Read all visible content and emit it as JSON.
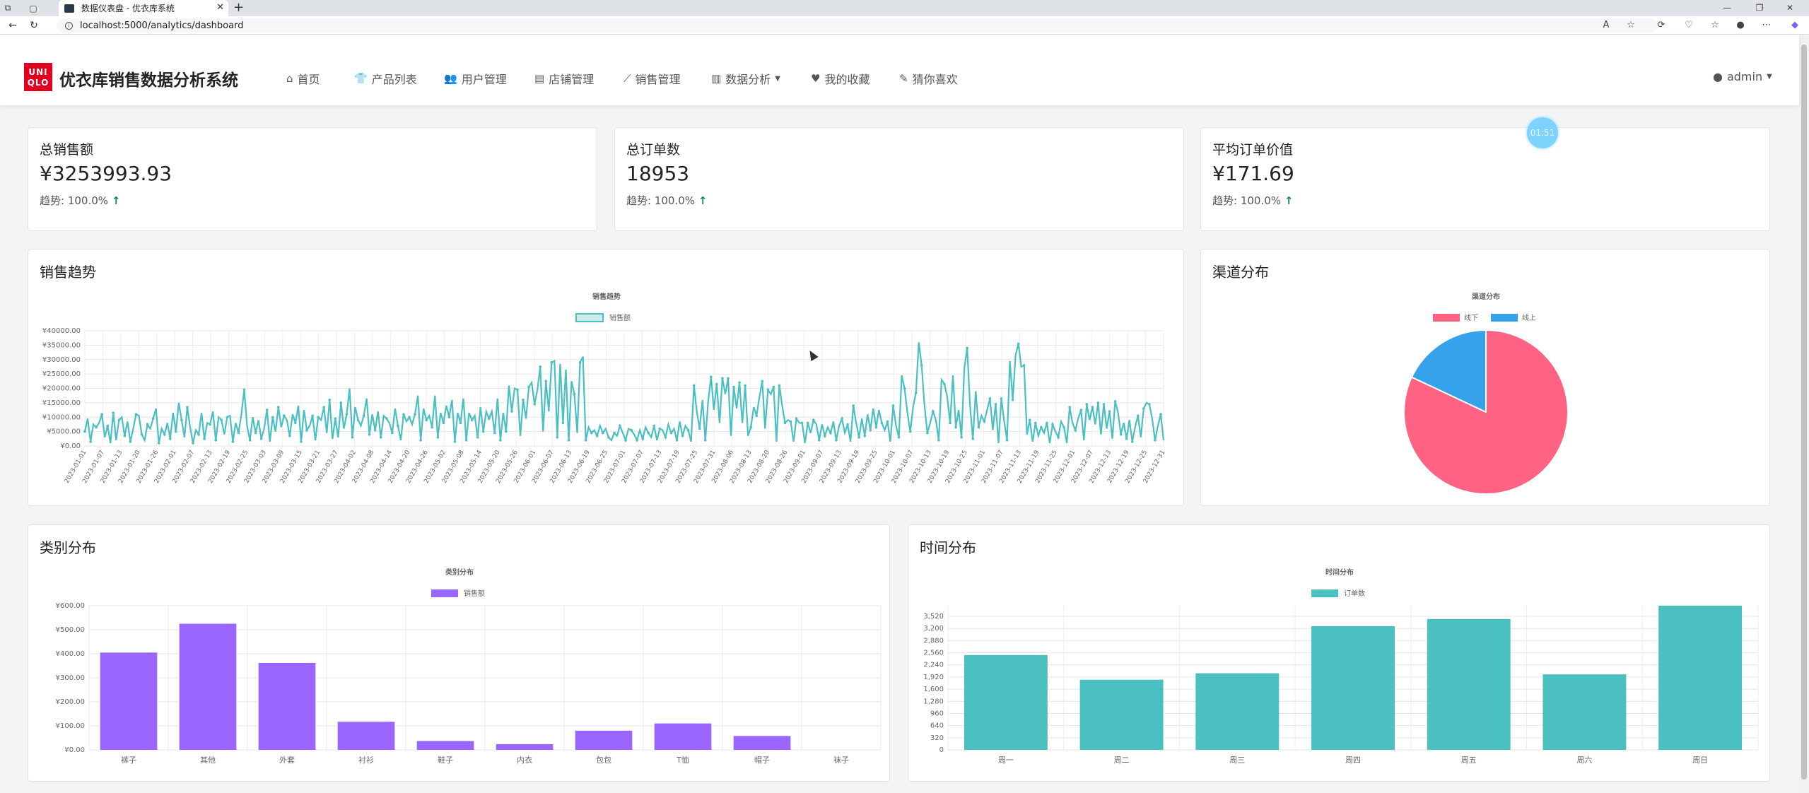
{
  "browser": {
    "tab_title": "数据仪表盘 - 优衣库系统",
    "url": "localhost:5000/analytics/dashboard",
    "new_tab_label": "+",
    "close_label": "✕"
  },
  "navbar": {
    "logo_top": "UNI",
    "logo_bottom": "QLO",
    "brand": "优衣库销售数据分析系统",
    "items": [
      {
        "icon": "home-icon",
        "label": "首页"
      },
      {
        "icon": "tshirt-icon",
        "label": "产品列表"
      },
      {
        "icon": "users-icon",
        "label": "用户管理"
      },
      {
        "icon": "store-icon",
        "label": "店铺管理"
      },
      {
        "icon": "line-chart-icon",
        "label": "销售管理"
      },
      {
        "icon": "bar-chart-icon",
        "label": "数据分析"
      },
      {
        "icon": "heart-icon",
        "label": "我的收藏"
      },
      {
        "icon": "pencil-icon",
        "label": "猜你喜欢"
      }
    ],
    "user": "admin"
  },
  "timer_badge": "01:51",
  "stats": [
    {
      "title": "总销售额",
      "value": "¥3253993.93",
      "trend_label": "趋势: 100.0%",
      "trend_arrow": "↑"
    },
    {
      "title": "总订单数",
      "value": "18953",
      "trend_label": "趋势: 100.0%",
      "trend_arrow": "↑"
    },
    {
      "title": "平均订单价值",
      "value": "¥171.69",
      "trend_label": "趋势: 100.0%",
      "trend_arrow": "↑"
    }
  ],
  "cards": {
    "sales_trend_title": "销售趋势",
    "channel_title": "渠道分布",
    "category_title": "类别分布",
    "time_title": "时间分布"
  },
  "colors": {
    "teal": "#4bc0c0",
    "pink": "#ff6384",
    "blue": "#36a2eb",
    "purple": "#9966ff",
    "stat_arrow": "#198754"
  },
  "chart_data": [
    {
      "type": "line",
      "title": "销售趋势",
      "legend": [
        "销售额"
      ],
      "ylim": [
        0,
        40000
      ],
      "y_ticks": [
        "¥0.00",
        "¥5000.00",
        "¥10000.00",
        "¥15000.00",
        "¥20000.00",
        "¥25000.00",
        "¥30000.00",
        "¥35000.00",
        "¥40000.00"
      ],
      "x_tick_labels": [
        "2023-01-01",
        "2023-01-07",
        "2023-01-13",
        "2023-01-20",
        "2023-01-26",
        "2023-02-01",
        "2023-02-07",
        "2023-02-13",
        "2023-02-19",
        "2023-02-25",
        "2023-03-03",
        "2023-03-09",
        "2023-03-15",
        "2023-03-21",
        "2023-03-27",
        "2023-04-02",
        "2023-04-08",
        "2023-04-14",
        "2023-04-20",
        "2023-04-26",
        "2023-05-02",
        "2023-05-08",
        "2023-05-14",
        "2023-05-20",
        "2023-05-26",
        "2023-06-01",
        "2023-06-07",
        "2023-06-13",
        "2023-06-19",
        "2023-06-25",
        "2023-07-01",
        "2023-07-07",
        "2023-07-13",
        "2023-07-19",
        "2023-07-25",
        "2023-07-31",
        "2023-08-06",
        "2023-08-13",
        "2023-08-20",
        "2023-08-26",
        "2023-09-01",
        "2023-09-07",
        "2023-09-13",
        "2023-09-19",
        "2023-09-25",
        "2023-10-01",
        "2023-10-07",
        "2023-10-13",
        "2023-10-19",
        "2023-10-25",
        "2023-11-01",
        "2023-11-07",
        "2023-11-13",
        "2023-11-19",
        "2023-11-25",
        "2023-12-01",
        "2023-12-07",
        "2023-12-13",
        "2023-12-19",
        "2023-12-25",
        "2023-12-31"
      ],
      "values": [
        5000,
        9500,
        1500,
        7500,
        6500,
        8000,
        11000,
        3000,
        7000,
        1000,
        11500,
        2000,
        9000,
        10000,
        3500,
        8500,
        1500,
        6000,
        11000,
        10500,
        4000,
        2000,
        7500,
        6000,
        9500,
        13000,
        1000,
        6000,
        4000,
        8000,
        2500,
        11500,
        5000,
        15000,
        9000,
        3000,
        13500,
        6500,
        1000,
        5500,
        4000,
        11500,
        2500,
        8000,
        7500,
        12000,
        2000,
        10000,
        9000,
        4000,
        10000,
        10500,
        1500,
        8000,
        4500,
        11000,
        19500,
        7000,
        2000,
        10000,
        4500,
        9000,
        2500,
        6000,
        12500,
        1500,
        10000,
        5000,
        13500,
        6500,
        10500,
        9000,
        3500,
        11000,
        8000,
        14000,
        1500,
        12500,
        5500,
        7000,
        10500,
        2000,
        10000,
        9000,
        13500,
        4500,
        16000,
        2500,
        9500,
        3000,
        15000,
        6000,
        11000,
        20000,
        3000,
        13500,
        9000,
        7000,
        10500,
        16500,
        4000,
        11000,
        5500,
        12000,
        3000,
        10500,
        9500,
        8000,
        4500,
        13000,
        7000,
        2000,
        11000,
        8500,
        10000,
        7500,
        11000,
        17500,
        2000,
        13000,
        9000,
        10500,
        6500,
        17500,
        3000,
        11500,
        8000,
        14000,
        10000,
        16000,
        1500,
        11500,
        8000,
        16500,
        2000,
        11500,
        9000,
        10500,
        3000,
        13500,
        5000,
        12000,
        9500,
        12000,
        4500,
        16500,
        2000,
        11500,
        5000,
        21000,
        12000,
        20000,
        19500,
        3500,
        16000,
        9500,
        20500,
        22000,
        14500,
        19500,
        27500,
        5000,
        22500,
        12000,
        29000,
        29500,
        3000,
        28500,
        8000,
        26500,
        2000,
        22500,
        18000,
        4500,
        29000,
        31000,
        2000,
        6500,
        4500,
        5500,
        3500,
        7000,
        4500,
        6000,
        3000,
        2000,
        4500,
        3500,
        7000,
        4500,
        2000,
        6000,
        5500,
        4000,
        2000,
        5500,
        2500,
        6500,
        4500,
        3000,
        7000,
        2000,
        6000,
        5500,
        3000,
        7500,
        4500,
        6000,
        2000,
        8500,
        3500,
        7000,
        5500,
        1500,
        21000,
        12000,
        6000,
        16000,
        2000,
        15500,
        24000,
        12500,
        21500,
        8000,
        23500,
        18000,
        23500,
        3500,
        20500,
        13000,
        22000,
        8000,
        21000,
        3500,
        6500,
        13500,
        10500,
        17000,
        22500,
        6000,
        19500,
        18000,
        20500,
        1500,
        21000,
        14000,
        8000,
        9000,
        8500,
        1500,
        9500,
        8000,
        8000,
        1000,
        8000,
        4500,
        9000,
        7500,
        2000,
        7500,
        3500,
        6500,
        4500,
        8500,
        2000,
        7000,
        9500,
        4500,
        7500,
        1500,
        14000,
        8000,
        3000,
        9500,
        3500,
        11000,
        5500,
        13000,
        6500,
        12500,
        8000,
        5500,
        8500,
        1500,
        14000,
        7000,
        3000,
        24500,
        20000,
        11500,
        5000,
        13500,
        18500,
        36000,
        28000,
        14000,
        4500,
        8000,
        12000,
        9000,
        2000,
        23000,
        21500,
        17000,
        8000,
        24500,
        6500,
        12500,
        3000,
        27000,
        34000,
        14000,
        2500,
        19000,
        6500,
        10500,
        8500,
        12500,
        16500,
        5500,
        14500,
        1000,
        16500,
        8500,
        2000,
        29500,
        16000,
        31500,
        35500,
        27500,
        28000,
        4000,
        9000,
        1500,
        8000,
        3500,
        6500,
        4500,
        8000,
        1000,
        7500,
        5000,
        3000,
        8500,
        6500,
        1000,
        13500,
        8000,
        5500,
        9500,
        12500,
        2000,
        14500,
        9000,
        13500,
        7500,
        15000,
        4000,
        14500,
        6000,
        12000,
        2500,
        15500,
        11500,
        4000,
        8000,
        2500,
        9000,
        1500,
        6500,
        10500,
        3000,
        13000,
        15000,
        14500,
        9500,
        2000,
        7000,
        11000,
        2000
      ],
      "note_values_source": "estimated from plotted line"
    },
    {
      "type": "pie",
      "title": "渠道分布",
      "categories": [
        "线下",
        "线上"
      ],
      "values": [
        82,
        18
      ],
      "colors": [
        "#ff6384",
        "#36a2eb"
      ]
    },
    {
      "type": "bar",
      "title": "类别分布",
      "legend": [
        "销售额"
      ],
      "categories": [
        "裤子",
        "其他",
        "外套",
        "衬衫",
        "鞋子",
        "内衣",
        "包包",
        "T恤",
        "帽子",
        "袜子"
      ],
      "values": [
        405,
        525,
        362,
        117,
        37,
        24,
        80,
        110,
        58,
        0
      ],
      "ylim": [
        0,
        600
      ],
      "y_ticks": [
        "¥0.00",
        "¥100.00",
        "¥200.00",
        "¥300.00",
        "¥400.00",
        "¥500.00",
        "¥600.00"
      ]
    },
    {
      "type": "bar",
      "title": "时间分布",
      "legend": [
        "订单数"
      ],
      "categories": [
        "周一",
        "周二",
        "周三",
        "周四",
        "周五",
        "周六",
        "周日"
      ],
      "values": [
        2500,
        1850,
        2020,
        3260,
        3450,
        1990,
        3800
      ],
      "ylim": [
        0,
        3800
      ],
      "y_ticks": [
        "0",
        "320",
        "640",
        "960",
        "1,280",
        "1,600",
        "1,920",
        "2,240",
        "2,560",
        "2,880",
        "3,200",
        "3,520"
      ]
    }
  ]
}
